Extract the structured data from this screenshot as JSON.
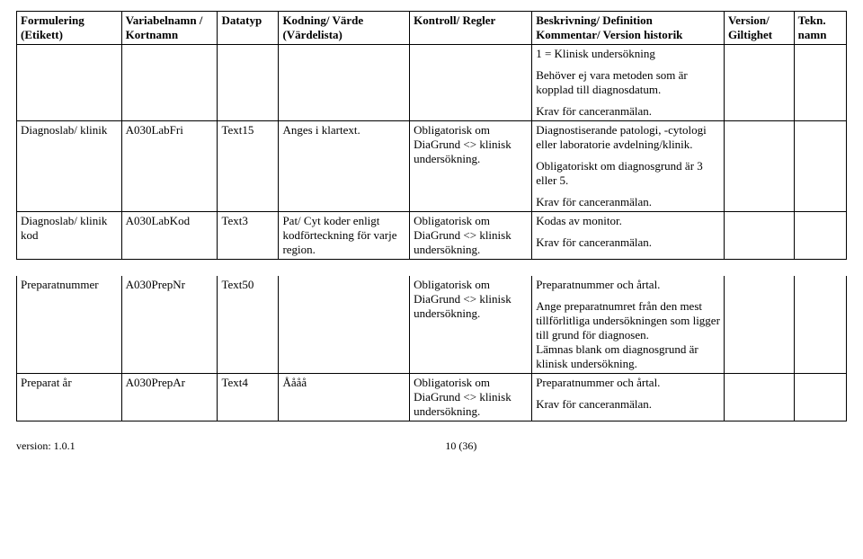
{
  "columns": [
    {
      "label": "Formulering (Etikett)",
      "width": "12%"
    },
    {
      "label": "Variabelnamn / Kortnamn",
      "width": "11%"
    },
    {
      "label": "Datatyp",
      "width": "7%"
    },
    {
      "label": "Kodning/ Värde (Värdelista)",
      "width": "15%"
    },
    {
      "label": "Kontroll/ Regler",
      "width": "14%"
    },
    {
      "label": "Beskrivning/ Definition\nKommentar/ Version historik",
      "width": "22%"
    },
    {
      "label": "Version/ Giltighet",
      "width": "8%"
    },
    {
      "label": "Tekn. namn",
      "width": "6%"
    }
  ],
  "rows": [
    {
      "cells": [
        "",
        "",
        "",
        "",
        "",
        "1 = Klinisk undersökning\n\nBehöver ej vara metoden som är kopplad till diagnosdatum.\n\nKrav för canceranmälan.",
        "",
        ""
      ],
      "bsep": true
    },
    {
      "cells": [
        "Diagnoslab/ klinik",
        "A030LabFri",
        "Text15",
        "Anges i klartext.",
        "Obligatorisk om DiaGrund <> klinisk undersökning.",
        "Diagnostiserande patologi, -cytologi eller laboratorie avdelning/klinik.\n\nObligatoriskt  om  diagnosgrund är 3 eller 5.\n\nKrav för canceranmälan.",
        "",
        ""
      ],
      "bsep": true
    },
    {
      "cells": [
        "Diagnoslab/ klinik kod",
        "A030LabKod",
        "Text3",
        "Pat/ Cyt koder enligt kodförteckning för varje region.",
        "Obligatorisk om DiaGrund <> klinisk undersökning.",
        "Kodas av monitor.\n\nKrav för canceranmälan.",
        "",
        ""
      ],
      "bsep": true
    },
    {
      "spacer": true
    },
    {
      "cells": [
        "Preparatnummer",
        "A030PrepNr",
        "Text50",
        "",
        "Obligatorisk om DiaGrund <> klinisk undersökning.",
        "Preparatnummer och årtal.\n\nAnge preparatnumret från den mest tillförlitliga undersökningen som ligger till grund för diagnosen.\nLämnas blank om diagnosgrund är klinisk undersökning.",
        "",
        ""
      ],
      "bsep": true
    },
    {
      "cells": [
        "Preparat år",
        "A030PrepAr",
        "Text4",
        "Åååå",
        "Obligatorisk om DiaGrund <> klinisk undersökning.",
        "Preparatnummer och årtal.\n\nKrav för canceranmälan.",
        "",
        ""
      ],
      "bsep": true
    }
  ],
  "footer": {
    "version": "version: 1.0.1",
    "page": "10 (36)"
  }
}
